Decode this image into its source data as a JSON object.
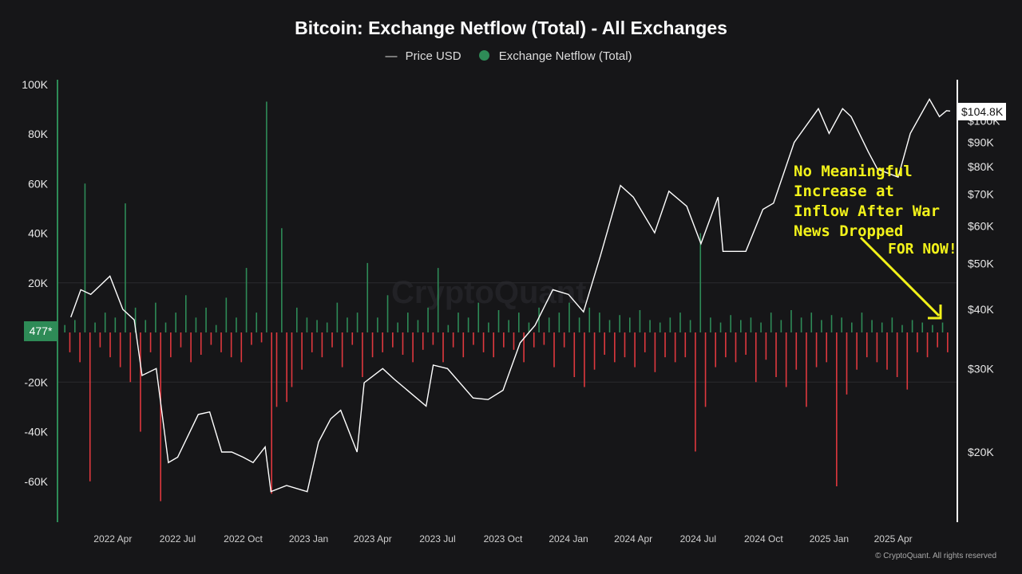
{
  "chart_data": {
    "type": "bar+line",
    "title": "Bitcoin: Exchange Netflow (Total) - All Exchanges",
    "legend": [
      {
        "name": "Price USD",
        "color": "#ffffff"
      },
      {
        "name": "Exchange Netflow (Total)",
        "color": "#2e8b57"
      }
    ],
    "legend_placement": "top-center",
    "left_axis": {
      "ticks": [
        "100K",
        "80K",
        "60K",
        "40K",
        "20K",
        "-20K",
        "-40K",
        "-60K"
      ],
      "tick_values": [
        100000,
        80000,
        60000,
        40000,
        20000,
        -20000,
        -40000,
        -60000
      ],
      "range": [
        -76000,
        104000
      ]
    },
    "right_axis": {
      "scale": "log",
      "ticks": [
        "$100K",
        "$90K",
        "$80K",
        "$70K",
        "$60K",
        "$50K",
        "$40K",
        "$30K",
        "$20K"
      ],
      "tick_values": [
        100000,
        90000,
        80000,
        70000,
        60000,
        50000,
        40000,
        30000,
        20000
      ]
    },
    "x_ticks": [
      "2022 Apr",
      "2022 Jul",
      "2022 Oct",
      "2023 Jan",
      "2023 Apr",
      "2023 Jul",
      "2023 Oct",
      "2024 Jan",
      "2024 Apr",
      "2024 Jul",
      "2024 Oct",
      "2025 Jan",
      "2025 Apr"
    ],
    "x_range": [
      "2022-01-20",
      "2025-06-20"
    ],
    "current_netflow_label": "477*",
    "current_price_label": "$104.8K",
    "netflow_unit": "K BTC, ~weekly, positive=inflow (green), negative=outflow (red)",
    "netflow": [
      3,
      -8,
      5,
      -12,
      60,
      -60,
      4,
      -6,
      8,
      -10,
      6,
      -14,
      52,
      -20,
      10,
      -40,
      5,
      -8,
      12,
      -68,
      4,
      -10,
      8,
      -6,
      15,
      -12,
      6,
      -9,
      10,
      -5,
      3,
      -8,
      14,
      -10,
      6,
      -12,
      26,
      -5,
      8,
      -4,
      93,
      -65,
      -30,
      42,
      -28,
      -22,
      10,
      -15,
      6,
      -8,
      5,
      -10,
      4,
      -6,
      12,
      -14,
      6,
      -5,
      8,
      -18,
      28,
      -10,
      6,
      -8,
      15,
      -6,
      4,
      -9,
      8,
      -12,
      5,
      -7,
      10,
      -5,
      26,
      -12,
      3,
      -6,
      8,
      -10,
      6,
      -5,
      12,
      -8,
      4,
      -10,
      9,
      -6,
      5,
      -7,
      8,
      -12,
      4,
      -6,
      10,
      -5,
      6,
      -14,
      8,
      -6,
      12,
      -18,
      6,
      -22,
      10,
      -15,
      8,
      -9,
      5,
      -12,
      7,
      -10,
      6,
      -14,
      9,
      -8,
      5,
      -16,
      4,
      -10,
      6,
      -12,
      8,
      -10,
      5,
      -48,
      40,
      -30,
      6,
      -14,
      4,
      -10,
      7,
      -12,
      5,
      -9,
      6,
      -20,
      4,
      -11,
      8,
      -18,
      5,
      -22,
      9,
      -15,
      6,
      -30,
      8,
      -14,
      5,
      -12,
      7,
      -62,
      6,
      -25,
      4,
      -15,
      8,
      -10,
      5,
      -12,
      4,
      -15,
      6,
      -18,
      3,
      -23,
      5,
      -8,
      4,
      -10,
      3,
      -6,
      4,
      -8
    ],
    "price": [
      [
        "2022-02-01",
        38.5
      ],
      [
        "2022-02-15",
        44
      ],
      [
        "2022-03-01",
        43
      ],
      [
        "2022-03-28",
        47
      ],
      [
        "2022-04-15",
        40
      ],
      [
        "2022-05-01",
        38
      ],
      [
        "2022-05-12",
        29
      ],
      [
        "2022-06-01",
        30
      ],
      [
        "2022-06-18",
        19
      ],
      [
        "2022-07-01",
        19.5
      ],
      [
        "2022-07-30",
        24
      ],
      [
        "2022-08-15",
        24.3
      ],
      [
        "2022-09-01",
        20
      ],
      [
        "2022-09-15",
        20
      ],
      [
        "2022-10-01",
        19.5
      ],
      [
        "2022-10-15",
        19
      ],
      [
        "2022-11-01",
        20.5
      ],
      [
        "2022-11-09",
        16.5
      ],
      [
        "2022-12-01",
        17
      ],
      [
        "2022-12-30",
        16.5
      ],
      [
        "2023-01-15",
        21
      ],
      [
        "2023-02-01",
        23.5
      ],
      [
        "2023-02-15",
        24.5
      ],
      [
        "2023-03-10",
        20
      ],
      [
        "2023-03-20",
        28
      ],
      [
        "2023-04-15",
        30
      ],
      [
        "2023-05-01",
        28.5
      ],
      [
        "2023-06-15",
        25
      ],
      [
        "2023-06-25",
        30.5
      ],
      [
        "2023-07-15",
        30
      ],
      [
        "2023-08-20",
        26
      ],
      [
        "2023-09-10",
        25.8
      ],
      [
        "2023-10-01",
        27
      ],
      [
        "2023-10-25",
        34
      ],
      [
        "2023-11-15",
        37
      ],
      [
        "2023-12-10",
        44
      ],
      [
        "2024-01-01",
        43
      ],
      [
        "2024-01-22",
        39.5
      ],
      [
        "2024-02-15",
        52
      ],
      [
        "2024-03-14",
        73
      ],
      [
        "2024-04-01",
        69
      ],
      [
        "2024-05-01",
        58
      ],
      [
        "2024-05-21",
        71
      ],
      [
        "2024-06-15",
        66
      ],
      [
        "2024-07-05",
        55
      ],
      [
        "2024-07-29",
        69
      ],
      [
        "2024-08-05",
        53
      ],
      [
        "2024-09-06",
        53
      ],
      [
        "2024-09-30",
        65
      ],
      [
        "2024-10-15",
        67
      ],
      [
        "2024-11-13",
        90
      ],
      [
        "2024-12-17",
        106
      ],
      [
        "2025-01-01",
        94
      ],
      [
        "2025-01-20",
        106
      ],
      [
        "2025-02-01",
        102
      ],
      [
        "2025-02-25",
        86
      ],
      [
        "2025-03-10",
        79
      ],
      [
        "2025-04-08",
        76
      ],
      [
        "2025-04-25",
        94
      ],
      [
        "2025-05-22",
        111
      ],
      [
        "2025-06-05",
        102
      ],
      [
        "2025-06-15",
        105
      ],
      [
        "2025-06-20",
        104.8
      ]
    ],
    "price_unit": "K USD",
    "annotation": "No Meaningful\nIncrease at\nInflow After War\nNews Dropped",
    "annotation2": "FOR NOW!",
    "watermark": "CryptoQuant",
    "copyright": "© CryptoQuant. All rights reserved",
    "colors": {
      "inflow": "#2e8b57",
      "outflow": "#e0383e",
      "price": "#ffffff",
      "annotation": "#f2f21a"
    }
  }
}
